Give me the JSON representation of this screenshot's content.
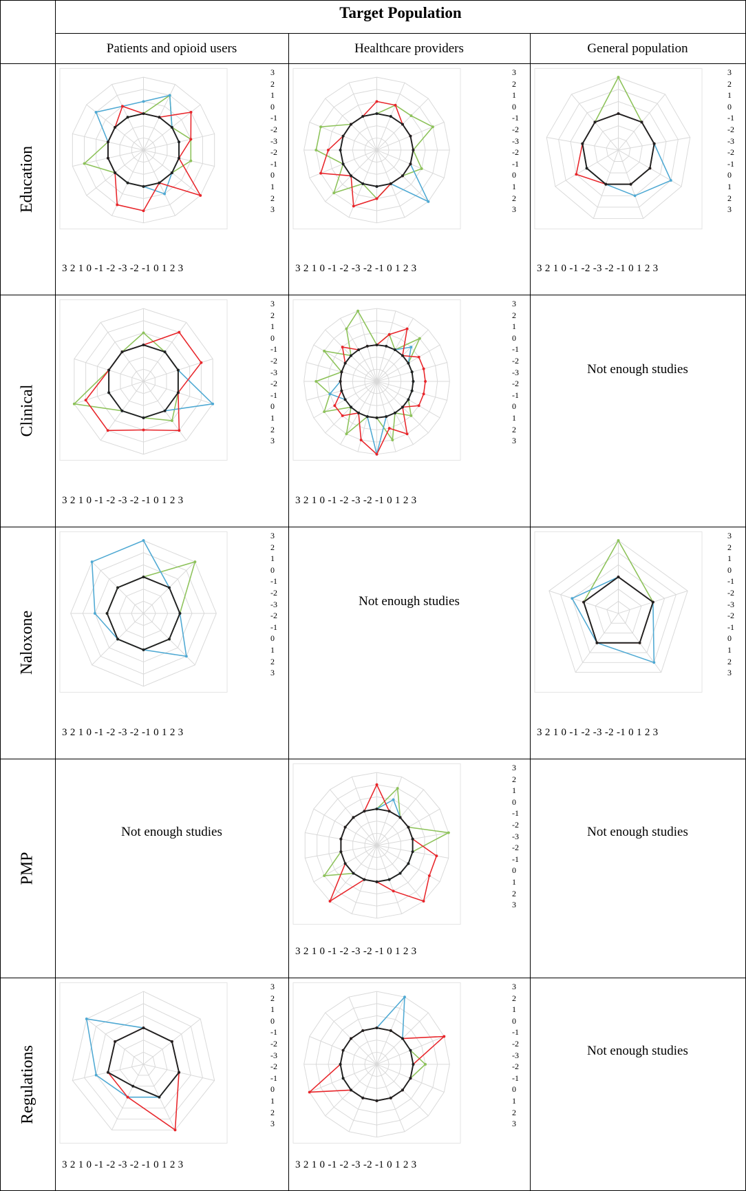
{
  "header": {
    "title": "Target Population",
    "columns": [
      "Patients and opioid users",
      "Healthcare providers",
      "General population"
    ]
  },
  "rows": [
    "Education",
    "Clinical",
    "Naloxone",
    "PMP",
    "Regulations"
  ],
  "axis_scale_labels": [
    "3",
    "2",
    "1",
    "0",
    "-1",
    "-2",
    "-3",
    "-2",
    "-1",
    "0",
    "1",
    "2",
    "3"
  ],
  "bottom_scale_text": "3 2 1 0 -1 -2 -3 -2 -1 0 1 2 3",
  "not_enough_text": "Not enough studies",
  "colors": {
    "red": "#e8262b",
    "green": "#8dc25a",
    "blue": "#4fa9d3",
    "black": "#222222",
    "grid": "#d9d9d9"
  },
  "chart_data": [
    {
      "type": "radar",
      "row": "Education",
      "column": "Patients and opioid users",
      "ylim": [
        -3,
        3
      ],
      "axes": 14,
      "series": [
        {
          "color": "red",
          "values": [
            0,
            0,
            2,
            1,
            0,
            3,
            0,
            2,
            2,
            0,
            0,
            0,
            0,
            1
          ]
        },
        {
          "color": "green",
          "values": [
            0,
            2,
            0,
            1,
            1,
            0,
            0,
            0,
            0,
            0,
            2,
            0,
            0,
            0
          ]
        },
        {
          "color": "blue",
          "values": [
            1,
            2,
            0,
            0,
            0,
            0,
            1,
            0,
            0,
            0,
            0,
            0,
            2,
            1
          ]
        },
        {
          "color": "black",
          "values": [
            0,
            0,
            0,
            0,
            0,
            0,
            0,
            0,
            0,
            0,
            0,
            0,
            0,
            0
          ]
        }
      ]
    },
    {
      "type": "radar",
      "row": "Education",
      "column": "Healthcare providers",
      "ylim": [
        -3,
        3
      ],
      "axes": 16,
      "series": [
        {
          "color": "red",
          "values": [
            1,
            1,
            0,
            0,
            0,
            0,
            0,
            0,
            1,
            2,
            0,
            2,
            1,
            0,
            0,
            0
          ]
        },
        {
          "color": "green",
          "values": [
            0,
            1,
            1,
            2,
            0,
            1,
            0,
            0,
            1,
            0,
            2,
            0,
            2,
            2,
            0,
            0
          ]
        },
        {
          "color": "blue",
          "values": [
            0,
            0,
            0,
            0,
            0,
            0,
            3,
            0,
            0,
            0,
            0,
            0,
            0,
            0,
            0,
            0
          ]
        },
        {
          "color": "black",
          "values": [
            0,
            0,
            0,
            0,
            0,
            0,
            0,
            0,
            0,
            0,
            0,
            0,
            0,
            0,
            0,
            0
          ]
        }
      ]
    },
    {
      "type": "radar",
      "row": "Education",
      "column": "General population",
      "ylim": [
        -3,
        3
      ],
      "axes": 9,
      "series": [
        {
          "color": "red",
          "values": [
            0,
            0,
            0,
            0,
            0,
            0,
            1,
            0,
            0
          ]
        },
        {
          "color": "green",
          "values": [
            3,
            0,
            0,
            0,
            0,
            0,
            0,
            0,
            0
          ]
        },
        {
          "color": "blue",
          "values": [
            0,
            0,
            0,
            2,
            1,
            0,
            0,
            0,
            0
          ]
        },
        {
          "color": "black",
          "values": [
            0,
            0,
            0,
            0,
            0,
            0,
            0,
            0,
            0
          ]
        }
      ]
    },
    {
      "type": "radar",
      "row": "Clinical",
      "column": "Patients and opioid users",
      "ylim": [
        -3,
        3
      ],
      "axes": 10,
      "series": [
        {
          "color": "red",
          "values": [
            0,
            2,
            2,
            0,
            2,
            1,
            2,
            2,
            0,
            0
          ]
        },
        {
          "color": "green",
          "values": [
            1,
            0,
            0,
            0,
            1,
            0,
            0,
            3,
            0,
            0
          ]
        },
        {
          "color": "blue",
          "values": [
            0,
            0,
            0,
            3,
            0,
            0,
            0,
            0,
            0,
            0
          ]
        },
        {
          "color": "black",
          "values": [
            0,
            0,
            0,
            0,
            0,
            0,
            0,
            0,
            0,
            0
          ]
        }
      ]
    },
    {
      "type": "radar",
      "row": "Clinical",
      "column": "Healthcare providers",
      "ylim": [
        -3,
        3
      ],
      "axes": 24,
      "series": [
        {
          "color": "red",
          "values": [
            0,
            1,
            2,
            0,
            1,
            1,
            1,
            1,
            1,
            0,
            2,
            1,
            3,
            2,
            0,
            1,
            1,
            0,
            0,
            0,
            0,
            1,
            0,
            0
          ]
        },
        {
          "color": "green",
          "values": [
            0,
            1,
            0,
            2,
            0,
            0,
            0,
            0,
            0,
            1,
            0,
            2,
            0,
            0,
            2,
            0,
            2,
            1,
            2,
            0,
            2,
            0,
            2,
            3
          ]
        },
        {
          "color": "blue",
          "values": [
            0,
            0,
            0,
            1,
            0,
            0,
            0,
            0,
            0,
            0,
            0,
            0,
            3,
            0,
            0,
            0,
            0,
            1,
            0,
            0,
            0,
            0,
            0,
            0
          ]
        },
        {
          "color": "black",
          "values": [
            0,
            0,
            0,
            0,
            0,
            0,
            0,
            0,
            0,
            0,
            0,
            0,
            0,
            0,
            0,
            0,
            0,
            0,
            0,
            0,
            0,
            0,
            0,
            0
          ]
        }
      ]
    },
    {
      "type": "radar",
      "row": "Naloxone",
      "column": "Patients and opioid users",
      "ylim": [
        -3,
        3
      ],
      "axes": 8,
      "series": [
        {
          "color": "green",
          "values": [
            0,
            3,
            0,
            0,
            0,
            0,
            0,
            0
          ]
        },
        {
          "color": "blue",
          "values": [
            3,
            0,
            0,
            2,
            0,
            0,
            1,
            3
          ]
        },
        {
          "color": "black",
          "values": [
            0,
            0,
            0,
            0,
            0,
            0,
            0,
            0
          ]
        }
      ]
    },
    {
      "type": "radar",
      "row": "Naloxone",
      "column": "General population",
      "ylim": [
        -3,
        3
      ],
      "axes": 5,
      "series": [
        {
          "color": "red",
          "values": [
            0,
            0,
            0,
            0,
            0
          ]
        },
        {
          "color": "green",
          "values": [
            3,
            0,
            0,
            0,
            0
          ]
        },
        {
          "color": "blue",
          "values": [
            0,
            0,
            2,
            0,
            1
          ]
        },
        {
          "color": "black",
          "values": [
            0,
            0,
            0,
            0,
            0
          ]
        }
      ]
    },
    {
      "type": "radar",
      "row": "PMP",
      "column": "Healthcare providers",
      "ylim": [
        -3,
        3
      ],
      "axes": 18,
      "series": [
        {
          "color": "red",
          "values": [
            2,
            0,
            0,
            0,
            0,
            2,
            2,
            3,
            1,
            0,
            0,
            3,
            0,
            0,
            0,
            0,
            0,
            0
          ]
        },
        {
          "color": "green",
          "values": [
            0,
            2,
            0,
            0,
            3,
            0,
            0,
            0,
            0,
            0,
            0,
            0,
            2,
            0,
            0,
            0,
            0,
            0
          ]
        },
        {
          "color": "blue",
          "values": [
            0,
            1,
            0,
            0,
            0,
            0,
            0,
            0,
            0,
            0,
            0,
            0,
            0,
            0,
            0,
            0,
            0,
            0
          ]
        },
        {
          "color": "black",
          "values": [
            0,
            0,
            0,
            0,
            0,
            0,
            0,
            0,
            0,
            0,
            0,
            0,
            0,
            0,
            0,
            0,
            0,
            0
          ]
        }
      ]
    },
    {
      "type": "radar",
      "row": "Regulations",
      "column": "Patients and opioid users",
      "ylim": [
        -3,
        3
      ],
      "axes": 7,
      "series": [
        {
          "color": "red",
          "values": [
            0,
            0,
            0,
            3,
            0,
            0,
            0
          ]
        },
        {
          "color": "blue",
          "values": [
            0,
            0,
            0,
            0,
            0,
            1,
            3
          ]
        },
        {
          "color": "black",
          "values": [
            0,
            0,
            0,
            0,
            -1,
            0,
            0
          ]
        }
      ]
    },
    {
      "type": "radar",
      "row": "Regulations",
      "column": "Healthcare providers",
      "ylim": [
        -3,
        3
      ],
      "axes": 16,
      "series": [
        {
          "color": "red",
          "values": [
            0,
            0,
            0,
            3,
            0,
            0,
            0,
            0,
            0,
            0,
            0,
            3,
            0,
            0,
            0,
            0
          ]
        },
        {
          "color": "green",
          "values": [
            0,
            0,
            0,
            0,
            1,
            0,
            0,
            0,
            0,
            0,
            0,
            0,
            0,
            0,
            0,
            0
          ]
        },
        {
          "color": "blue",
          "values": [
            0,
            3,
            0,
            0,
            0,
            0,
            0,
            0,
            0,
            0,
            0,
            0,
            0,
            0,
            0,
            0
          ]
        },
        {
          "color": "black",
          "values": [
            0,
            0,
            0,
            0,
            0,
            0,
            0,
            0,
            0,
            0,
            0,
            0,
            0,
            0,
            0,
            0
          ]
        }
      ]
    }
  ]
}
